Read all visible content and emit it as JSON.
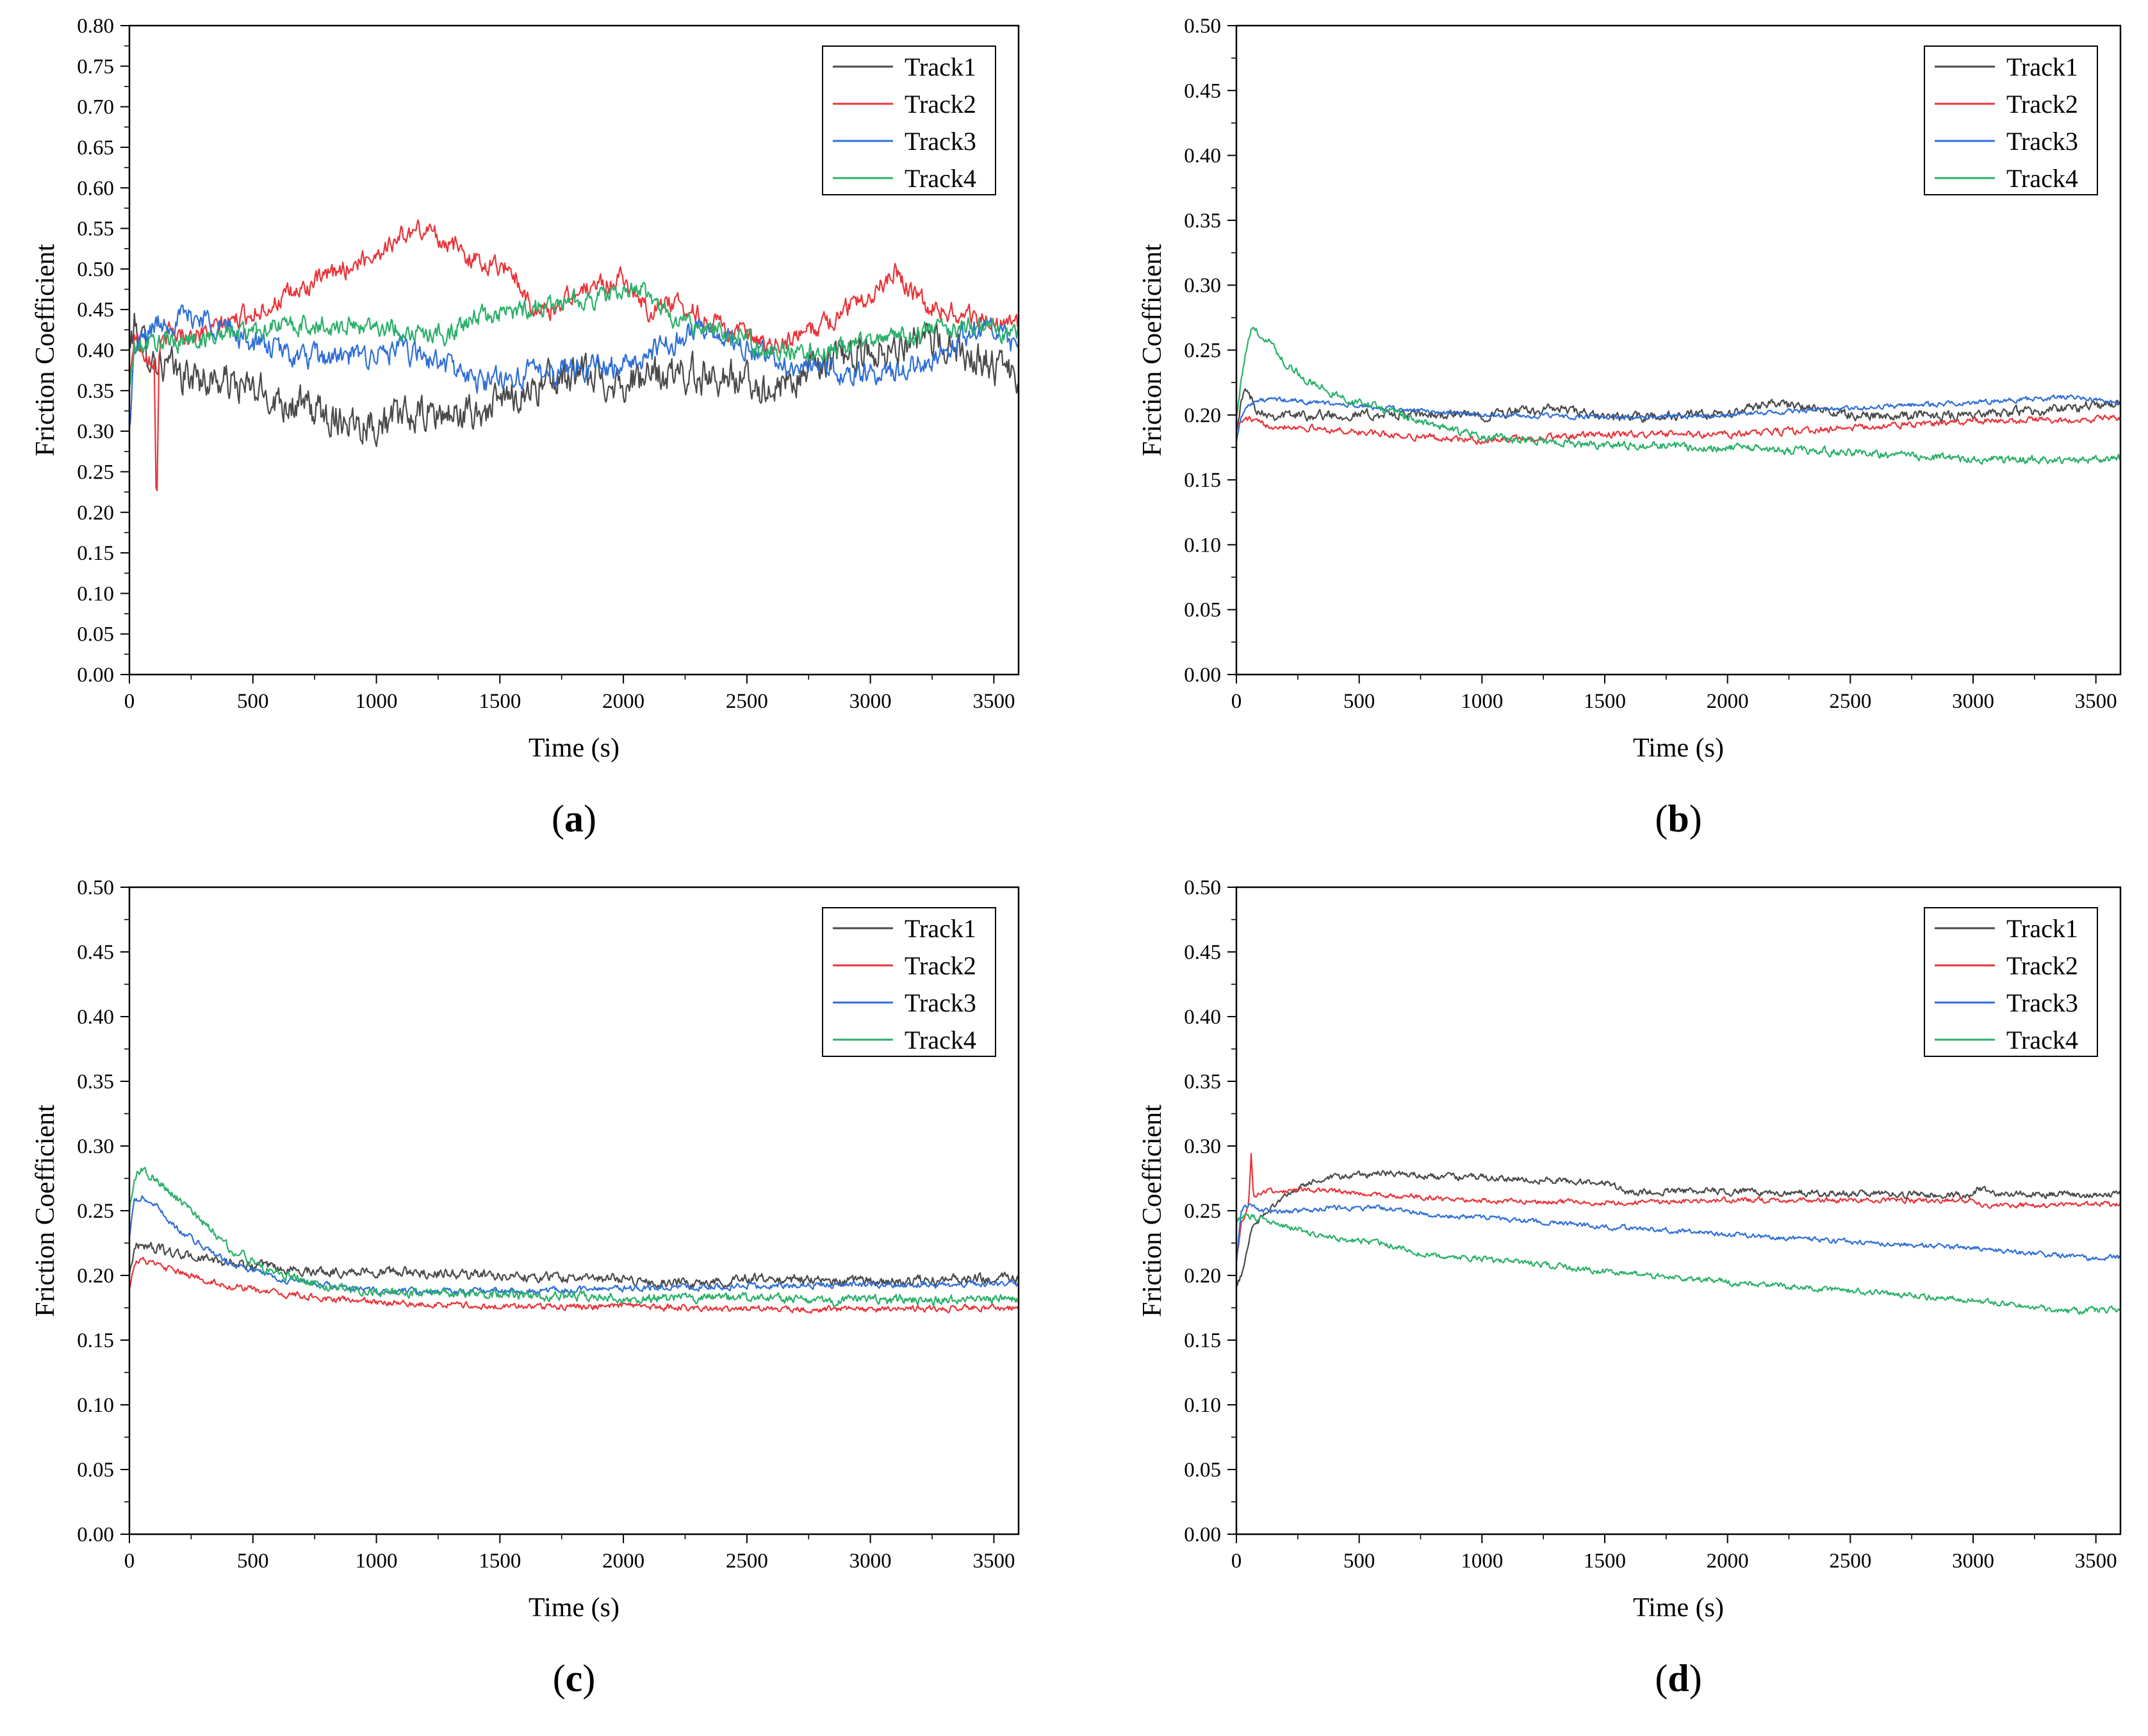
{
  "figure": {
    "panel_ids": [
      "a",
      "b",
      "c",
      "d"
    ]
  },
  "colors": {
    "Track1": "#4a4a4a",
    "Track2": "#e8353a",
    "Track3": "#2f6fd6",
    "Track4": "#2bb069",
    "frame": "#000000"
  },
  "chart_data": [
    {
      "id": "a",
      "type": "line",
      "label_letter": "a",
      "label_open": "(",
      "label_close": ")",
      "xlabel": "Time (s)",
      "ylabel": "Friction Coefficient",
      "xlim": [
        0,
        3600
      ],
      "ylim": [
        0,
        0.8
      ],
      "legend_position": "top-right",
      "xticks": [
        0,
        500,
        1000,
        1500,
        2000,
        2500,
        3000,
        3500
      ],
      "xtick_labels": [
        "0",
        "500",
        "1000",
        "1500",
        "2000",
        "2500",
        "3000",
        "3500"
      ],
      "yticks": [
        0,
        0.05,
        0.1,
        0.15,
        0.2,
        0.25,
        0.3,
        0.35,
        0.4,
        0.45,
        0.5,
        0.55,
        0.6,
        0.65,
        0.7,
        0.75,
        0.8
      ],
      "ytick_labels": [
        "0.00",
        "0.05",
        "0.10",
        "0.15",
        "0.20",
        "0.25",
        "0.30",
        "0.35",
        "0.40",
        "0.45",
        "0.50",
        "0.55",
        "0.60",
        "0.65",
        "0.70",
        "0.75",
        "0.80"
      ],
      "series": [
        {
          "name": "Track1",
          "noise": 0.018,
          "x": [
            0,
            20,
            50,
            100,
            200,
            400,
            600,
            800,
            1000,
            1200,
            1400,
            1600,
            1800,
            2000,
            2200,
            2400,
            2600,
            2800,
            3000,
            3200,
            3400,
            3600
          ],
          "y": [
            0.4,
            0.43,
            0.41,
            0.39,
            0.37,
            0.36,
            0.34,
            0.32,
            0.31,
            0.32,
            0.32,
            0.35,
            0.37,
            0.36,
            0.37,
            0.37,
            0.35,
            0.38,
            0.4,
            0.41,
            0.4,
            0.36
          ]
        },
        {
          "name": "Track2",
          "noise": 0.01,
          "x": [
            0,
            20,
            60,
            100,
            110,
            120,
            160,
            300,
            450,
            600,
            800,
            1000,
            1100,
            1200,
            1300,
            1400,
            1550,
            1650,
            1800,
            2000,
            2100,
            2200,
            2400,
            2600,
            2800,
            3000,
            3100,
            3200,
            3400,
            3600
          ],
          "y": [
            0.36,
            0.42,
            0.4,
            0.39,
            0.19,
            0.4,
            0.42,
            0.42,
            0.44,
            0.46,
            0.49,
            0.52,
            0.54,
            0.55,
            0.53,
            0.51,
            0.5,
            0.44,
            0.47,
            0.49,
            0.45,
            0.46,
            0.43,
            0.4,
            0.43,
            0.47,
            0.5,
            0.46,
            0.44,
            0.43
          ]
        },
        {
          "name": "Track3",
          "noise": 0.012,
          "x": [
            0,
            20,
            100,
            200,
            300,
            500,
            700,
            900,
            1100,
            1300,
            1400,
            1600,
            1800,
            2000,
            2200,
            2300,
            2500,
            2700,
            2900,
            3100,
            3300,
            3450,
            3600
          ],
          "y": [
            0.3,
            0.4,
            0.43,
            0.44,
            0.44,
            0.41,
            0.39,
            0.39,
            0.4,
            0.38,
            0.36,
            0.37,
            0.38,
            0.38,
            0.41,
            0.43,
            0.4,
            0.38,
            0.37,
            0.37,
            0.4,
            0.43,
            0.4
          ]
        },
        {
          "name": "Track4",
          "noise": 0.01,
          "x": [
            0,
            20,
            100,
            200,
            400,
            600,
            800,
            1000,
            1200,
            1300,
            1400,
            1600,
            1800,
            2000,
            2050,
            2200,
            2400,
            2600,
            2800,
            3000,
            3200,
            3400,
            3600
          ],
          "y": [
            0.35,
            0.4,
            0.41,
            0.41,
            0.42,
            0.43,
            0.43,
            0.43,
            0.42,
            0.42,
            0.44,
            0.45,
            0.46,
            0.47,
            0.48,
            0.44,
            0.42,
            0.4,
            0.4,
            0.41,
            0.42,
            0.43,
            0.42
          ]
        }
      ],
      "legend": [
        "Track1",
        "Track2",
        "Track3",
        "Track4"
      ]
    },
    {
      "id": "b",
      "type": "line",
      "label_letter": "b",
      "label_open": "(",
      "label_close": ")",
      "xlabel": "Time (s)",
      "ylabel": "Friction Coefficient",
      "xlim": [
        0,
        3600
      ],
      "ylim": [
        0,
        0.5
      ],
      "legend_position": "top-right",
      "xticks": [
        0,
        500,
        1000,
        1500,
        2000,
        2500,
        3000,
        3500
      ],
      "xtick_labels": [
        "0",
        "500",
        "1000",
        "1500",
        "2000",
        "2500",
        "3000",
        "3500"
      ],
      "yticks": [
        0,
        0.05,
        0.1,
        0.15,
        0.2,
        0.25,
        0.3,
        0.35,
        0.4,
        0.45,
        0.5
      ],
      "ytick_labels": [
        "0.00",
        "0.05",
        "0.10",
        "0.15",
        "0.20",
        "0.25",
        "0.30",
        "0.35",
        "0.40",
        "0.45",
        "0.50"
      ],
      "series": [
        {
          "name": "Track1",
          "noise": 0.003,
          "x": [
            0,
            20,
            40,
            80,
            150,
            300,
            600,
            1000,
            1300,
            1500,
            2000,
            2160,
            2500,
            3000,
            3400,
            3600
          ],
          "y": [
            0.19,
            0.21,
            0.22,
            0.205,
            0.2,
            0.2,
            0.2,
            0.2,
            0.205,
            0.198,
            0.2,
            0.21,
            0.2,
            0.2,
            0.205,
            0.21
          ]
        },
        {
          "name": "Track2",
          "noise": 0.002,
          "x": [
            0,
            20,
            50,
            100,
            300,
            600,
            1000,
            1500,
            2000,
            2500,
            3000,
            3500,
            3600
          ],
          "y": [
            0.19,
            0.195,
            0.197,
            0.193,
            0.19,
            0.185,
            0.18,
            0.185,
            0.185,
            0.19,
            0.195,
            0.197,
            0.198
          ]
        },
        {
          "name": "Track3",
          "noise": 0.0015,
          "x": [
            0,
            20,
            60,
            150,
            300,
            600,
            1000,
            1500,
            2000,
            2500,
            3000,
            3400,
            3600
          ],
          "y": [
            0.18,
            0.2,
            0.21,
            0.212,
            0.21,
            0.205,
            0.2,
            0.198,
            0.2,
            0.205,
            0.21,
            0.214,
            0.21
          ]
        },
        {
          "name": "Track4",
          "noise": 0.0025,
          "x": [
            0,
            30,
            60,
            120,
            200,
            300,
            450,
            600,
            800,
            1000,
            1500,
            2000,
            2500,
            3000,
            3500,
            3600
          ],
          "y": [
            0.2,
            0.24,
            0.265,
            0.26,
            0.24,
            0.225,
            0.212,
            0.205,
            0.192,
            0.183,
            0.177,
            0.175,
            0.171,
            0.166,
            0.165,
            0.167
          ]
        }
      ],
      "legend": [
        "Track1",
        "Track2",
        "Track3",
        "Track4"
      ]
    },
    {
      "id": "c",
      "type": "line",
      "label_letter": "c",
      "label_open": "(",
      "label_close": ")",
      "xlabel": "Time (s)",
      "ylabel": "Friction Coefficient",
      "xlim": [
        0,
        3600
      ],
      "ylim": [
        0,
        0.5
      ],
      "legend_position": "top-right",
      "xticks": [
        0,
        500,
        1000,
        1500,
        2000,
        2500,
        3000,
        3500
      ],
      "xtick_labels": [
        "0",
        "500",
        "1000",
        "1500",
        "2000",
        "2500",
        "3000",
        "3500"
      ],
      "yticks": [
        0,
        0.05,
        0.1,
        0.15,
        0.2,
        0.25,
        0.3,
        0.35,
        0.4,
        0.45,
        0.5
      ],
      "ytick_labels": [
        "0.00",
        "0.05",
        "0.10",
        "0.15",
        "0.20",
        "0.25",
        "0.30",
        "0.35",
        "0.40",
        "0.45",
        "0.50"
      ],
      "series": [
        {
          "name": "Track1",
          "noise": 0.003,
          "x": [
            0,
            20,
            50,
            200,
            400,
            600,
            800,
            1000,
            1500,
            2000,
            2250,
            2500,
            3000,
            3500,
            3600
          ],
          "y": [
            0.2,
            0.222,
            0.224,
            0.216,
            0.21,
            0.205,
            0.203,
            0.203,
            0.2,
            0.197,
            0.193,
            0.198,
            0.195,
            0.198,
            0.197
          ]
        },
        {
          "name": "Track2",
          "noise": 0.002,
          "x": [
            0,
            20,
            50,
            200,
            400,
            600,
            800,
            1000,
            1500,
            2000,
            2500,
            3000,
            3600
          ],
          "y": [
            0.19,
            0.21,
            0.212,
            0.202,
            0.192,
            0.186,
            0.182,
            0.179,
            0.176,
            0.176,
            0.174,
            0.174,
            0.175
          ]
        },
        {
          "name": "Track3",
          "noise": 0.002,
          "x": [
            0,
            20,
            50,
            100,
            200,
            400,
            600,
            800,
            1000,
            1500,
            2000,
            2500,
            3000,
            3600
          ],
          "y": [
            0.23,
            0.257,
            0.26,
            0.255,
            0.235,
            0.21,
            0.198,
            0.192,
            0.188,
            0.188,
            0.19,
            0.192,
            0.193,
            0.193
          ]
        },
        {
          "name": "Track4",
          "noise": 0.003,
          "x": [
            0,
            20,
            50,
            100,
            200,
            300,
            400,
            500,
            600,
            800,
            1000,
            1500,
            2000,
            2500,
            3000,
            3600
          ],
          "y": [
            0.25,
            0.275,
            0.282,
            0.275,
            0.258,
            0.24,
            0.222,
            0.21,
            0.202,
            0.192,
            0.187,
            0.185,
            0.183,
            0.182,
            0.181,
            0.181
          ]
        }
      ],
      "legend": [
        "Track1",
        "Track2",
        "Track3",
        "Track4"
      ]
    },
    {
      "id": "d",
      "type": "line",
      "label_letter": "d",
      "label_open": "(",
      "label_close": ")",
      "xlabel": "Time (s)",
      "ylabel": "Friction Coefficient",
      "xlim": [
        0,
        3600
      ],
      "ylim": [
        0,
        0.5
      ],
      "legend_position": "top-right",
      "xticks": [
        0,
        500,
        1000,
        1500,
        2000,
        2500,
        3000,
        3500
      ],
      "xtick_labels": [
        "0",
        "500",
        "1000",
        "1500",
        "2000",
        "2500",
        "3000",
        "3500"
      ],
      "yticks": [
        0,
        0.05,
        0.1,
        0.15,
        0.2,
        0.25,
        0.3,
        0.35,
        0.4,
        0.45,
        0.5
      ],
      "ytick_labels": [
        "0.00",
        "0.05",
        "0.10",
        "0.15",
        "0.20",
        "0.25",
        "0.30",
        "0.35",
        "0.40",
        "0.45",
        "0.50"
      ],
      "series": [
        {
          "name": "Track1",
          "noise": 0.002,
          "x": [
            0,
            20,
            60,
            150,
            300,
            500,
            650,
            800,
            1000,
            1200,
            1500,
            1600,
            1700,
            2000,
            2500,
            3000,
            3020,
            3100,
            3600
          ],
          "y": [
            0.19,
            0.2,
            0.235,
            0.255,
            0.272,
            0.278,
            0.279,
            0.276,
            0.276,
            0.274,
            0.272,
            0.264,
            0.265,
            0.265,
            0.263,
            0.262,
            0.267,
            0.263,
            0.262
          ]
        },
        {
          "name": "Track2",
          "noise": 0.0015,
          "x": [
            0,
            20,
            50,
            60,
            70,
            80,
            120,
            300,
            600,
            1000,
            1500,
            2000,
            2500,
            3000,
            3050,
            3600
          ],
          "y": [
            0.21,
            0.24,
            0.255,
            0.295,
            0.26,
            0.262,
            0.265,
            0.266,
            0.262,
            0.258,
            0.256,
            0.258,
            0.258,
            0.258,
            0.254,
            0.255
          ]
        },
        {
          "name": "Track3",
          "noise": 0.0015,
          "x": [
            0,
            20,
            50,
            100,
            200,
            400,
            600,
            800,
            1000,
            1500,
            2000,
            2500,
            3000,
            3500,
            3600
          ],
          "y": [
            0.21,
            0.25,
            0.255,
            0.25,
            0.249,
            0.252,
            0.252,
            0.247,
            0.245,
            0.238,
            0.232,
            0.226,
            0.221,
            0.213,
            0.214
          ]
        },
        {
          "name": "Track4",
          "noise": 0.0018,
          "x": [
            0,
            20,
            50,
            100,
            200,
            400,
            600,
            800,
            1000,
            1500,
            2000,
            2500,
            3000,
            3400,
            3600
          ],
          "y": [
            0.24,
            0.245,
            0.246,
            0.243,
            0.238,
            0.228,
            0.225,
            0.215,
            0.213,
            0.203,
            0.195,
            0.188,
            0.181,
            0.172,
            0.174
          ]
        }
      ],
      "legend": [
        "Track1",
        "Track2",
        "Track3",
        "Track4"
      ]
    }
  ]
}
